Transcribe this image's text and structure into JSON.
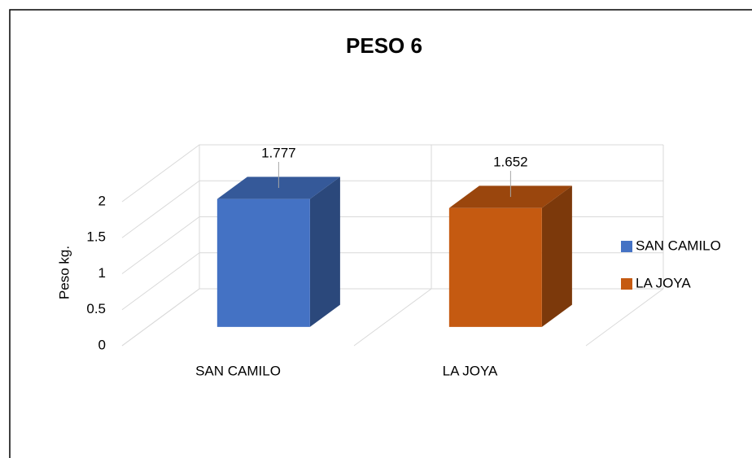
{
  "chart_data": {
    "type": "bar3d",
    "title": "PESO 6",
    "ylabel": "Peso kg.",
    "categories": [
      "SAN CAMILO",
      "LA JOYA"
    ],
    "values": [
      1.777,
      1.652
    ],
    "colors": [
      "#4472c4",
      "#c55a11"
    ],
    "ylim": [
      0,
      2
    ],
    "yticks": [
      0,
      0.5,
      1,
      1.5,
      2
    ],
    "grid": true,
    "legend": "right"
  }
}
